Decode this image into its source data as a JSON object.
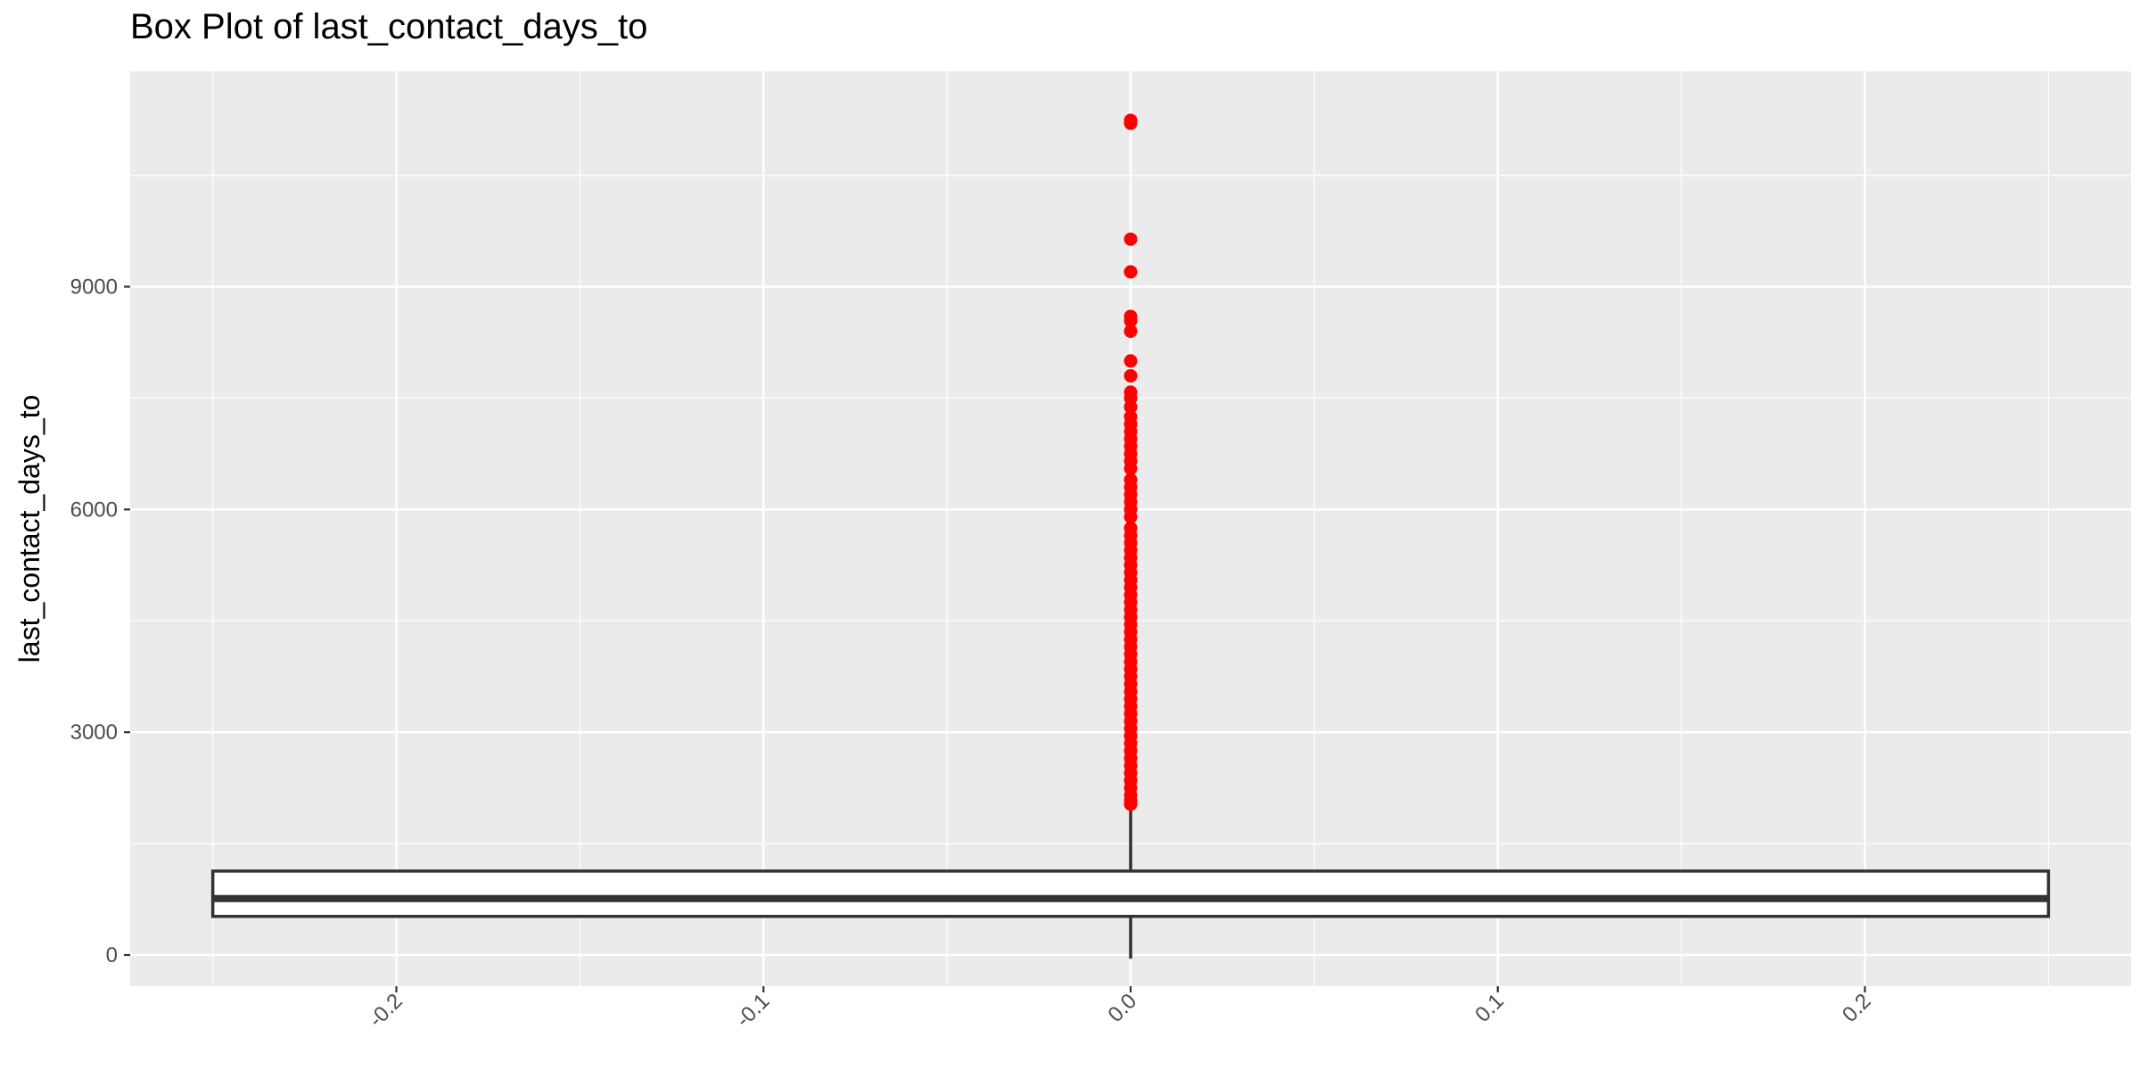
{
  "chart_data": {
    "type": "box",
    "title": "Box Plot of last_contact_days_to",
    "xlabel": "",
    "ylabel": "last_contact_days_to",
    "xlim": [
      -0.2725,
      0.2725
    ],
    "ylim": [
      -420,
      11900
    ],
    "x_ticks": [
      -0.2,
      -0.1,
      0.0,
      0.1,
      0.2
    ],
    "x_tick_labels": [
      "-0.2",
      "-0.1",
      "0.0",
      "0.1",
      "0.2"
    ],
    "y_ticks": [
      0,
      3000,
      6000,
      9000
    ],
    "y_tick_labels": [
      "0",
      "3000",
      "6000",
      "9000"
    ],
    "grid": true,
    "box": {
      "x": 0.0,
      "x_left": -0.25,
      "x_right": 0.25,
      "whisker_low": -50,
      "q1": 520,
      "median": 760,
      "q3": 1130,
      "whisker_high": 2000
    },
    "outlier_color": "#ff0000",
    "outliers": [
      11240,
      11200,
      9640,
      9200,
      8600,
      8540,
      8400,
      8000,
      7800,
      7580,
      7500,
      7380,
      7250,
      7150,
      7050,
      6950,
      6850,
      6750,
      6650,
      6550,
      6400,
      6300,
      6200,
      6100,
      6000,
      5900,
      5750,
      5650,
      5550,
      5450,
      5350,
      5250,
      5150,
      5050,
      4950,
      4850,
      4750,
      4650,
      4550,
      4450,
      4350,
      4250,
      4150,
      4050,
      3950,
      3850,
      3750,
      3650,
      3550,
      3450,
      3350,
      3250,
      3150,
      3050,
      2950,
      2850,
      2750,
      2650,
      2550,
      2450,
      2350,
      2250,
      2150,
      2080,
      2030
    ]
  }
}
